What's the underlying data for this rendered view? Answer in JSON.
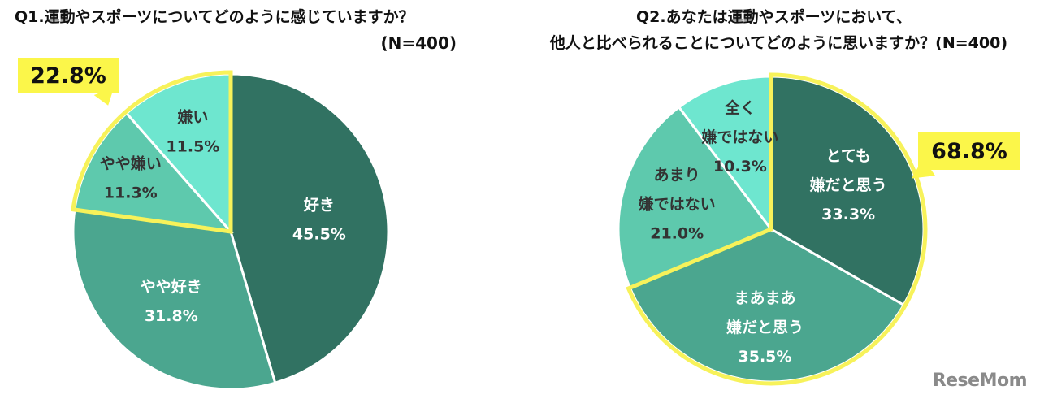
{
  "chart_data": [
    {
      "type": "pie",
      "title": "Q1.運動やスポーツについてどのように感じていますか？",
      "note": "(N=400)",
      "slices": [
        {
          "label": "好き",
          "value": 45.5,
          "display": "45.5%",
          "color": "#317262",
          "text_color": "#ffffff"
        },
        {
          "label": "やや好き",
          "value": 31.8,
          "display": "31.8%",
          "color": "#4ba68f",
          "text_color": "#ffffff"
        },
        {
          "label": "やや嫌い",
          "value": 11.3,
          "display": "11.3%",
          "color": "#5ec9ad",
          "text_color": "#333333"
        },
        {
          "label": "嫌い",
          "value": 11.5,
          "display": "11.5%",
          "color": "#6ee6cf",
          "text_color": "#333333"
        }
      ],
      "highlight": {
        "slices": [
          "やや嫌い",
          "嫌い"
        ],
        "callout": "22.8%",
        "color": "#f7f25a"
      }
    },
    {
      "type": "pie",
      "title": "Q2.あなたは運動やスポーツにおいて、",
      "title_line2": "他人と比べられることについてどのように思いますか？(N=400)",
      "slices": [
        {
          "label": "とても嫌だと思う",
          "label_lines": [
            "とても",
            "嫌だと思う"
          ],
          "value": 33.3,
          "display": "33.3%",
          "color": "#317262",
          "text_color": "#ffffff"
        },
        {
          "label": "まあまあ嫌だと思う",
          "label_lines": [
            "まあまあ",
            "嫌だと思う"
          ],
          "value": 35.5,
          "display": "35.5%",
          "color": "#4ba68f",
          "text_color": "#ffffff"
        },
        {
          "label": "あまり嫌ではない",
          "label_lines": [
            "あまり",
            "嫌ではない"
          ],
          "value": 21.0,
          "display": "21.0%",
          "color": "#5ec9ad",
          "text_color": "#333333"
        },
        {
          "label": "全く嫌ではない",
          "label_lines": [
            "全く",
            "嫌ではない"
          ],
          "value": 10.3,
          "display": "10.3%",
          "color": "#6ee6cf",
          "text_color": "#333333"
        }
      ],
      "highlight": {
        "slices": [
          "とても嫌だと思う",
          "まあまあ嫌だと思う"
        ],
        "callout": "68.8%",
        "color": "#f7f25a"
      }
    }
  ],
  "brand": "ReseMom"
}
